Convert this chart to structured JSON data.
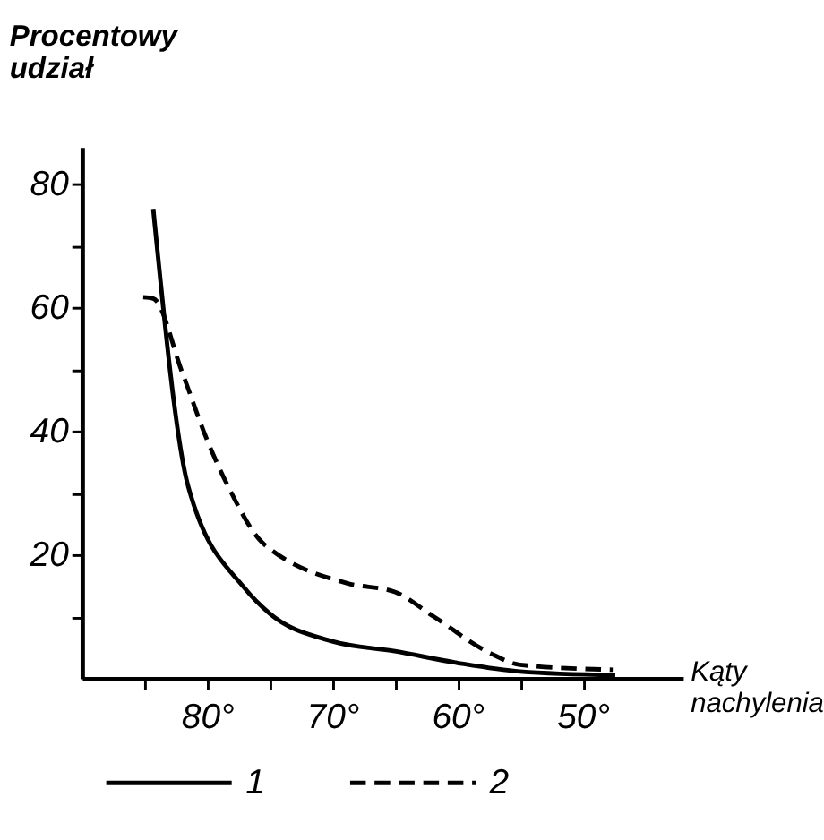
{
  "chart_data": {
    "type": "line",
    "xlabel": "Kąty nachylenia",
    "ylabel": "Procentowy udział",
    "xlim": [
      90,
      42
    ],
    "ylim": [
      0,
      86
    ],
    "xticks": [
      {
        "value": 85,
        "label": null
      },
      {
        "value": 80,
        "label": "80°"
      },
      {
        "value": 75,
        "label": null
      },
      {
        "value": 70,
        "label": "70°"
      },
      {
        "value": 65,
        "label": null
      },
      {
        "value": 60,
        "label": "60°"
      },
      {
        "value": 55,
        "label": null
      },
      {
        "value": 50,
        "label": "50°"
      }
    ],
    "yticks": [
      {
        "value": 10,
        "label": null
      },
      20,
      {
        "value": 30,
        "label": null
      },
      40,
      {
        "value": 50,
        "label": null
      },
      60,
      {
        "value": 70,
        "label": null
      },
      80
    ],
    "grid": false,
    "legend": "bottom",
    "series": [
      {
        "name": "1",
        "color": "#000000",
        "line_style": "solid",
        "x": [
          84.3,
          81.5,
          77,
          75,
          70,
          65,
          60,
          55,
          47.4
        ],
        "values": [
          76,
          31,
          14.6,
          10.5,
          6,
          4.4,
          2.5,
          1.1,
          0.5
        ]
      },
      {
        "name": "2",
        "color": "#000000",
        "line_style": "dashed",
        "x": [
          85.1,
          84.3,
          82,
          80,
          78.3,
          75.6,
          75,
          68.8,
          65,
          61.9,
          57.4,
          55,
          47.6
        ],
        "values": [
          61.7,
          61.5,
          49.6,
          38.6,
          31,
          22,
          21,
          15.4,
          14,
          10,
          4.1,
          2.2,
          1.4
        ]
      }
    ]
  }
}
